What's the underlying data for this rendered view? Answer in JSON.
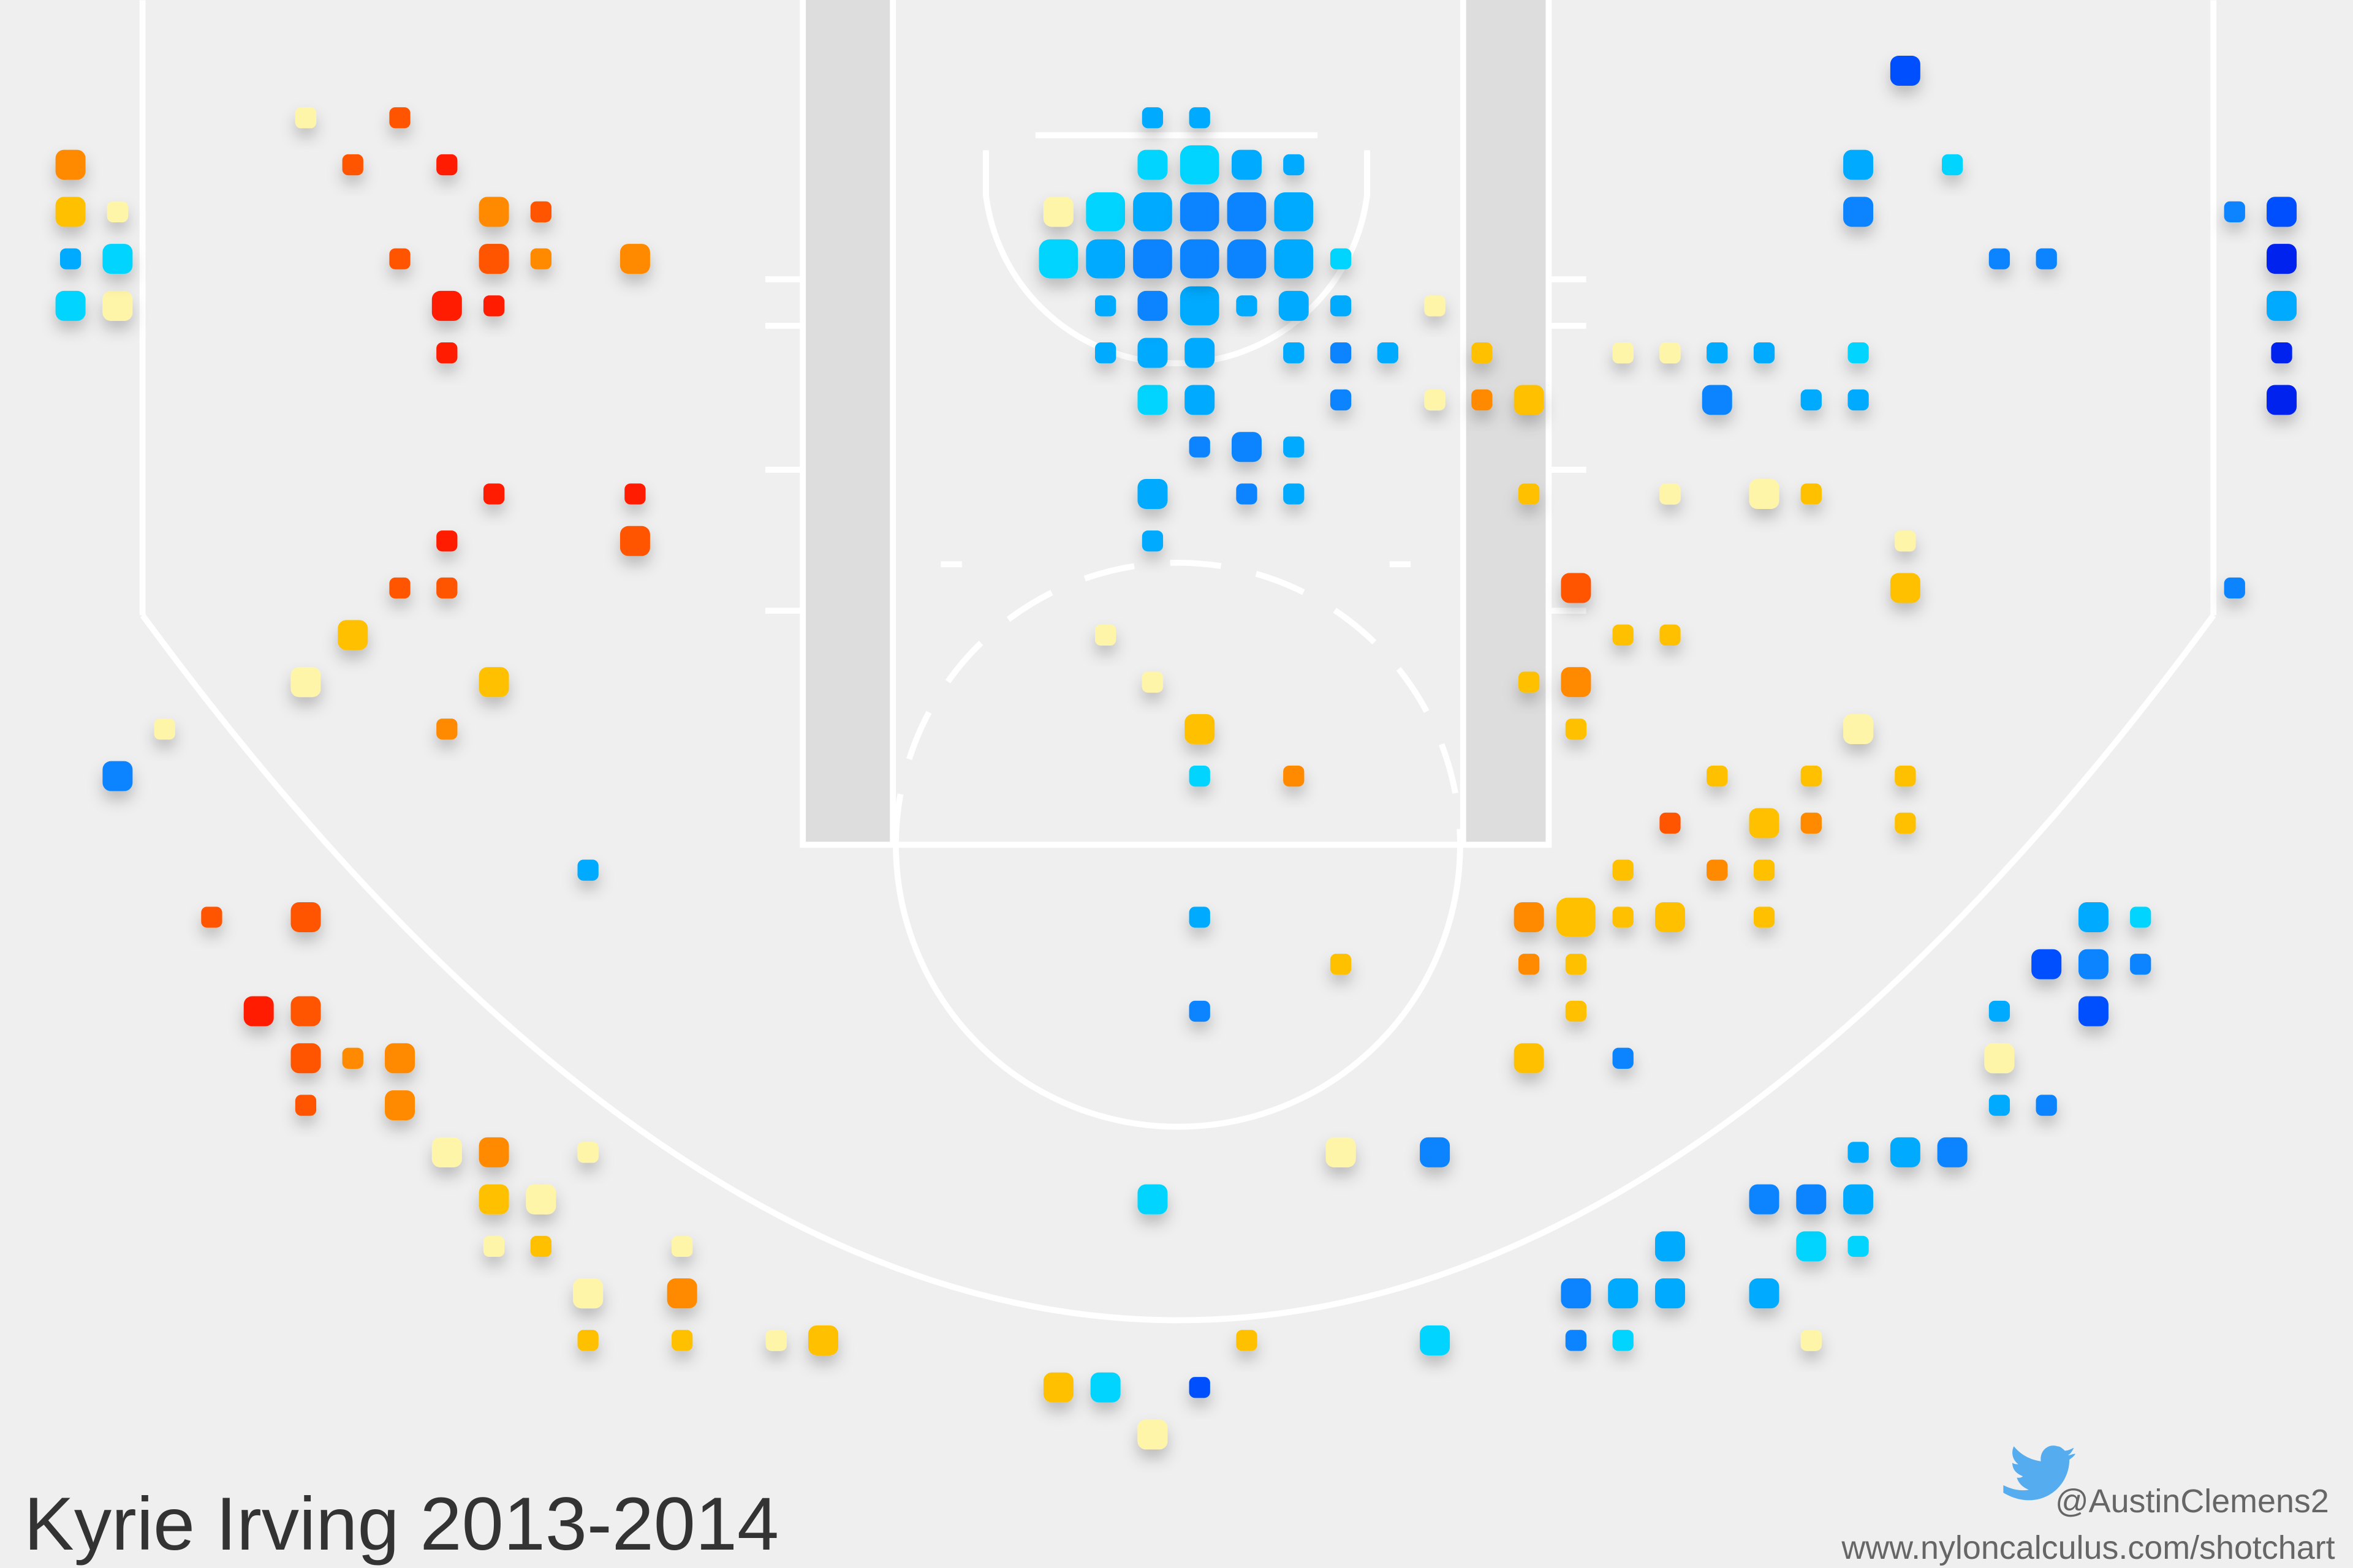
{
  "chart_data": {
    "type": "scatter",
    "title": "Kyrie Irving 2013-2014",
    "annotations": [
      "@AustinClemens2",
      "www.nyloncalculus.com/shotchart"
    ],
    "series": [
      {
        "color": "#ff1a00",
        "points": [
          [
            8,
            2,
            1
          ],
          [
            8,
            5,
            2
          ],
          [
            9,
            5,
            1
          ],
          [
            8,
            6,
            1
          ],
          [
            9,
            9,
            1
          ],
          [
            12,
            9,
            1
          ],
          [
            8,
            10,
            1
          ],
          [
            4,
            20,
            2
          ]
        ]
      },
      {
        "color": "#ff5500",
        "points": [
          [
            7,
            1,
            1
          ],
          [
            6,
            2,
            1
          ],
          [
            10,
            3,
            1
          ],
          [
            7,
            4,
            1
          ],
          [
            9,
            4,
            2
          ],
          [
            12,
            10,
            2
          ],
          [
            7,
            11,
            1
          ],
          [
            8,
            11,
            1
          ],
          [
            32,
            11,
            2
          ],
          [
            34,
            16,
            1
          ],
          [
            3,
            18,
            1
          ],
          [
            5,
            18,
            2
          ],
          [
            5,
            20,
            2
          ],
          [
            5,
            21,
            2
          ],
          [
            5,
            22,
            1
          ]
        ]
      },
      {
        "color": "#ff8a00",
        "points": [
          [
            0,
            2,
            2
          ],
          [
            9,
            3,
            2
          ],
          [
            10,
            4,
            1
          ],
          [
            12,
            4,
            2
          ],
          [
            30,
            7,
            1
          ],
          [
            32,
            13,
            2
          ],
          [
            8,
            14,
            1
          ],
          [
            26,
            15,
            1
          ],
          [
            37,
            16,
            1
          ],
          [
            35,
            17,
            1
          ],
          [
            31,
            18,
            2
          ],
          [
            31,
            19,
            1
          ],
          [
            6,
            21,
            1
          ],
          [
            7,
            21,
            2
          ],
          [
            7,
            22,
            2
          ],
          [
            9,
            23,
            2
          ],
          [
            13,
            26,
            2
          ]
        ]
      },
      {
        "color": "#ffc000",
        "points": [
          [
            0,
            3,
            2
          ],
          [
            6,
            12,
            2
          ],
          [
            9,
            13,
            2
          ],
          [
            30,
            6,
            1
          ],
          [
            31,
            7,
            2
          ],
          [
            31,
            9,
            1
          ],
          [
            37,
            9,
            1
          ],
          [
            39,
            11,
            2
          ],
          [
            33,
            12,
            1
          ],
          [
            34,
            12,
            1
          ],
          [
            31,
            13,
            1
          ],
          [
            24,
            14,
            2
          ],
          [
            32,
            14,
            1
          ],
          [
            35,
            15,
            1
          ],
          [
            37,
            15,
            1
          ],
          [
            39,
            15,
            1
          ],
          [
            36,
            16,
            2
          ],
          [
            39,
            16,
            1
          ],
          [
            33,
            17,
            1
          ],
          [
            36,
            17,
            1
          ],
          [
            32,
            18,
            3
          ],
          [
            33,
            18,
            1
          ],
          [
            34,
            18,
            2
          ],
          [
            36,
            18,
            1
          ],
          [
            27,
            19,
            1
          ],
          [
            32,
            19,
            1
          ],
          [
            32,
            20,
            1
          ],
          [
            31,
            21,
            2
          ],
          [
            9,
            24,
            2
          ],
          [
            10,
            25,
            1
          ],
          [
            11,
            27,
            1
          ],
          [
            13,
            27,
            1
          ],
          [
            16,
            27,
            2
          ],
          [
            25,
            27,
            1
          ],
          [
            21,
            28,
            2
          ]
        ]
      },
      {
        "color": "#fff5a8",
        "points": [
          [
            5,
            1,
            1
          ],
          [
            1,
            3,
            1
          ],
          [
            21,
            3,
            2
          ],
          [
            1,
            5,
            2
          ],
          [
            29,
            5,
            1
          ],
          [
            33,
            6,
            1
          ],
          [
            34,
            6,
            1
          ],
          [
            29,
            7,
            1
          ],
          [
            34,
            9,
            1
          ],
          [
            36,
            9,
            2
          ],
          [
            39,
            10,
            1
          ],
          [
            22,
            12,
            1
          ],
          [
            5,
            13,
            2
          ],
          [
            23,
            13,
            1
          ],
          [
            2,
            14,
            1
          ],
          [
            38,
            14,
            2
          ],
          [
            41,
            21,
            2
          ],
          [
            8,
            23,
            2
          ],
          [
            11,
            23,
            1
          ],
          [
            27,
            23,
            2
          ],
          [
            10,
            24,
            2
          ],
          [
            9,
            25,
            1
          ],
          [
            13,
            25,
            1
          ],
          [
            11,
            26,
            2
          ],
          [
            15,
            27,
            1
          ],
          [
            37,
            27,
            1
          ],
          [
            23,
            29,
            2
          ]
        ]
      },
      {
        "color": "#00d4ff",
        "points": [
          [
            24,
            2,
            3
          ],
          [
            23,
            2,
            2
          ],
          [
            40,
            2,
            1
          ],
          [
            22,
            3,
            3
          ],
          [
            1,
            4,
            2
          ],
          [
            21,
            4,
            3
          ],
          [
            27,
            4,
            1
          ],
          [
            0,
            5,
            2
          ],
          [
            38,
            6,
            1
          ],
          [
            23,
            7,
            2
          ],
          [
            24,
            15,
            1
          ],
          [
            44,
            18,
            1
          ],
          [
            23,
            24,
            2
          ],
          [
            37,
            25,
            2
          ],
          [
            38,
            25,
            1
          ],
          [
            29,
            27,
            2
          ],
          [
            33,
            27,
            1
          ],
          [
            22,
            28,
            2
          ]
        ]
      },
      {
        "color": "#00aaff",
        "points": [
          [
            23,
            1,
            1
          ],
          [
            24,
            1,
            1
          ],
          [
            25,
            2,
            2
          ],
          [
            26,
            2,
            1
          ],
          [
            38,
            2,
            2
          ],
          [
            23,
            3,
            3
          ],
          [
            26,
            3,
            3
          ],
          [
            0,
            4,
            1
          ],
          [
            22,
            4,
            3
          ],
          [
            26,
            4,
            3
          ],
          [
            22,
            5,
            1
          ],
          [
            24,
            5,
            3
          ],
          [
            25,
            5,
            1
          ],
          [
            26,
            5,
            2
          ],
          [
            27,
            5,
            1
          ],
          [
            47,
            5,
            2
          ],
          [
            22,
            6,
            1
          ],
          [
            23,
            6,
            2
          ],
          [
            24,
            6,
            2
          ],
          [
            26,
            6,
            1
          ],
          [
            28,
            6,
            1
          ],
          [
            35,
            6,
            1
          ],
          [
            36,
            6,
            1
          ],
          [
            24,
            7,
            2
          ],
          [
            37,
            7,
            1
          ],
          [
            38,
            7,
            1
          ],
          [
            26,
            8,
            1
          ],
          [
            23,
            9,
            2
          ],
          [
            26,
            9,
            1
          ],
          [
            23,
            10,
            1
          ],
          [
            11,
            17,
            1
          ],
          [
            24,
            18,
            1
          ],
          [
            43,
            18,
            2
          ],
          [
            41,
            20,
            1
          ],
          [
            41,
            22,
            1
          ],
          [
            38,
            23,
            1
          ],
          [
            39,
            23,
            2
          ],
          [
            38,
            24,
            2
          ],
          [
            34,
            25,
            2
          ],
          [
            33,
            26,
            2
          ],
          [
            34,
            26,
            2
          ],
          [
            36,
            26,
            2
          ]
        ]
      },
      {
        "color": "#0a84ff",
        "points": [
          [
            24,
            3,
            3
          ],
          [
            25,
            3,
            3
          ],
          [
            38,
            3,
            2
          ],
          [
            46,
            3,
            1
          ],
          [
            23,
            4,
            3
          ],
          [
            24,
            4,
            3
          ],
          [
            25,
            4,
            3
          ],
          [
            41,
            4,
            1
          ],
          [
            42,
            4,
            1
          ],
          [
            23,
            5,
            2
          ],
          [
            27,
            6,
            1
          ],
          [
            27,
            7,
            1
          ],
          [
            35,
            7,
            2
          ],
          [
            24,
            8,
            1
          ],
          [
            25,
            8,
            2
          ],
          [
            25,
            9,
            1
          ],
          [
            46,
            11,
            1
          ],
          [
            1,
            15,
            2
          ],
          [
            43,
            19,
            2
          ],
          [
            44,
            19,
            1
          ],
          [
            24,
            20,
            1
          ],
          [
            33,
            21,
            1
          ],
          [
            42,
            22,
            1
          ],
          [
            29,
            23,
            2
          ],
          [
            40,
            23,
            2
          ],
          [
            36,
            24,
            2
          ],
          [
            37,
            24,
            2
          ],
          [
            32,
            26,
            2
          ],
          [
            32,
            27,
            1
          ]
        ]
      },
      {
        "color": "#0050ff",
        "points": [
          [
            39,
            0,
            2
          ],
          [
            47,
            3,
            2
          ],
          [
            42,
            19,
            2
          ],
          [
            43,
            20,
            2
          ],
          [
            24,
            28,
            1
          ]
        ]
      },
      {
        "color": "#0022ee",
        "points": [
          [
            47,
            4,
            2
          ],
          [
            47,
            6,
            1
          ],
          [
            47,
            7,
            2
          ]
        ]
      }
    ]
  }
}
